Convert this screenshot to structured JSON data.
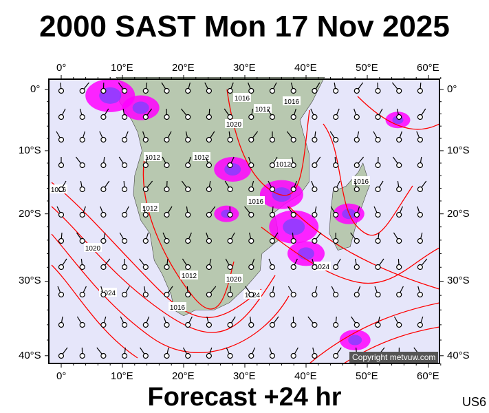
{
  "title": "2000 SAST Mon 17 Nov 2025",
  "footer": "Forecast +24 hr",
  "code": "US6",
  "copyright": "Copyright metvuw.com",
  "lon_ticks": [
    "0°",
    "10°E",
    "20°E",
    "30°E",
    "40°E",
    "50°E",
    "60°E"
  ],
  "lat_ticks": [
    "0°",
    "10°S",
    "20°S",
    "30°S",
    "40°S"
  ],
  "isobar_labels": [
    "1016",
    "1012",
    "1016",
    "1012",
    "1012",
    "1012",
    "1016",
    "1016",
    "1016",
    "1012",
    "1020",
    "1024",
    "1012",
    "1020",
    "1016",
    "1024",
    "1024",
    "1020"
  ],
  "colors": {
    "ocean": "#e6e6fa",
    "land": "#b8c8b0",
    "isobar": "#ff0000",
    "precip": "#ff00ff",
    "precip_heavy": "#8040ff"
  }
}
